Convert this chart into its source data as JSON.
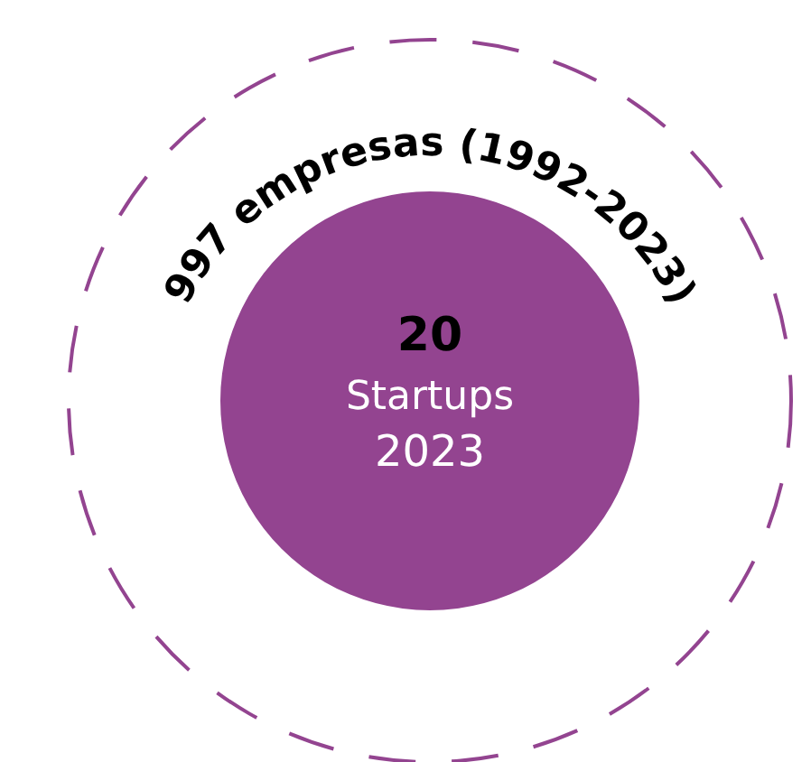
{
  "chart_data": {
    "type": "other",
    "categories": [
      "empresas (1992-2023)",
      "Startups 2023"
    ],
    "values": [
      997,
      20
    ],
    "data_labels": true,
    "colors": [
      "#934490",
      "#934490"
    ]
  }
}
